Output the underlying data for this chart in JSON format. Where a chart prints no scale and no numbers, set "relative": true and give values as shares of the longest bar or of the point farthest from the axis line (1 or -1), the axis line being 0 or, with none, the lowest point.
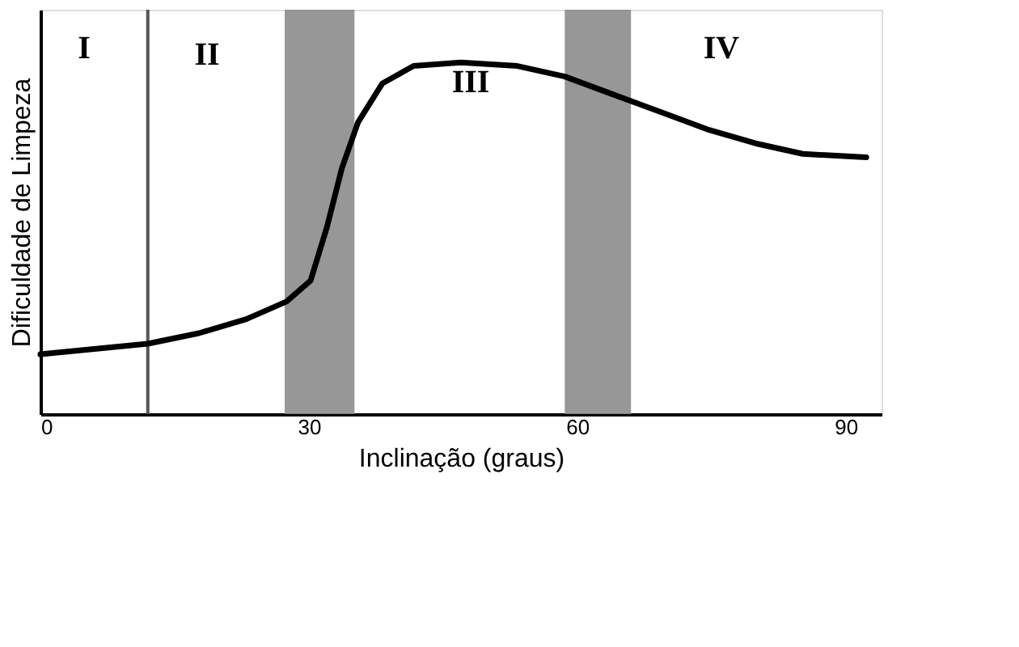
{
  "chart_data": {
    "type": "line",
    "relative": true,
    "xlabel": "Inclinação (graus)",
    "ylabel": "Dificuldade de Limpeza",
    "x": [
      0,
      12,
      17.7,
      23,
      27.5,
      30.2,
      32,
      33.7,
      35.5,
      38.2,
      41.7,
      47,
      53.3,
      58.6,
      63.9,
      69.2,
      74.5,
      79.9,
      85.2,
      92.3
    ],
    "series": [
      {
        "color": "#000000",
        "values": [
          0.17,
          0.2,
          0.23,
          0.27,
          0.32,
          0.38,
          0.53,
          0.7,
          0.83,
          0.94,
          0.99,
          1.0,
          0.99,
          0.96,
          0.91,
          0.86,
          0.81,
          0.77,
          0.74,
          0.73
        ]
      }
    ],
    "xlim": [
      0,
      94
    ],
    "xticks": [
      0,
      30,
      60,
      90
    ],
    "grid": false,
    "marker": "none",
    "line_style": "solid",
    "ref_lines": [
      {
        "axis": "x",
        "value": 12,
        "color": "#555555"
      }
    ],
    "bands": [
      {
        "axis": "x",
        "from": 27.3,
        "to": 35.1,
        "color": "#8c8c8c"
      },
      {
        "axis": "x",
        "from": 58.6,
        "to": 66,
        "color": "#8c8c8c"
      }
    ],
    "annotations": [
      "I",
      "II",
      "III",
      "IV"
    ]
  }
}
